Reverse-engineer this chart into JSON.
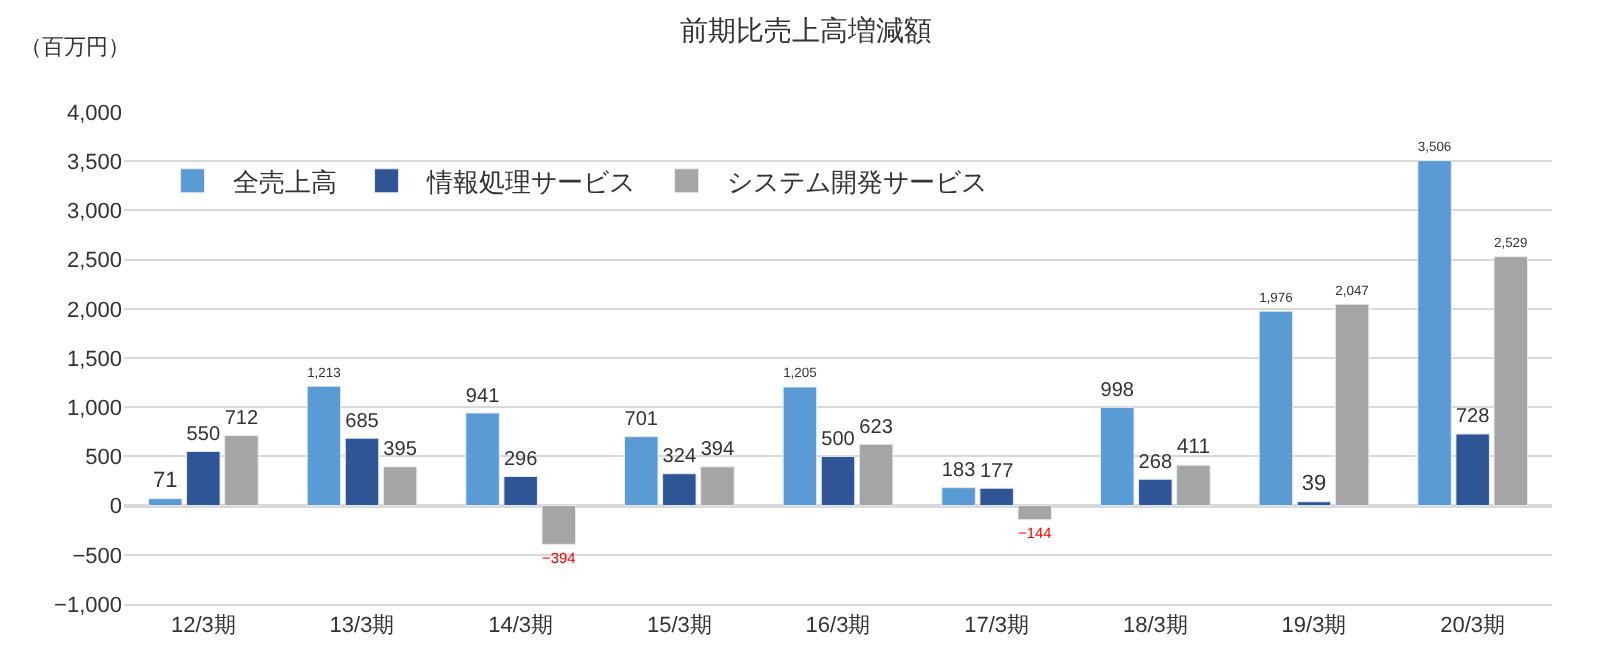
{
  "chart_data": {
    "type": "bar",
    "title": "前期比売上高増減額",
    "ylabel": "（百万円）",
    "categories": [
      "12/3期",
      "13/3期",
      "14/3期",
      "15/3期",
      "16/3期",
      "17/3期",
      "18/3期",
      "19/3期",
      "20/3期"
    ],
    "series": [
      {
        "name": "全売上高",
        "color": "#5b9bd5",
        "values": [
          71,
          1213,
          941,
          701,
          1205,
          183,
          998,
          1976,
          3506
        ],
        "value_labels": [
          "71",
          "1,213",
          "941",
          "701",
          "1,205",
          "183",
          "998",
          "1,976",
          "3,506"
        ]
      },
      {
        "name": "情報処理サービス",
        "color": "#2f5597",
        "values": [
          550,
          685,
          296,
          324,
          500,
          177,
          268,
          39,
          728
        ],
        "value_labels": [
          "550",
          "685",
          "296",
          "324",
          "500",
          "177",
          "268",
          "39",
          "728"
        ]
      },
      {
        "name": "システム開発サービス",
        "color": "#a5a5a5",
        "values": [
          712,
          395,
          -394,
          394,
          623,
          -144,
          411,
          2047,
          2529
        ],
        "value_labels": [
          "712",
          "395",
          "−394",
          "394",
          "623",
          "−144",
          "411",
          "2,047",
          "2,529"
        ]
      }
    ],
    "ylim": [
      -1000,
      4000
    ],
    "yticks": [
      {
        "value": -1000,
        "label": "−1,000"
      },
      {
        "value": -500,
        "label": "−500"
      },
      0,
      500,
      {
        "value": 1000,
        "label": "1,000"
      },
      {
        "value": 1500,
        "label": "1,500"
      },
      {
        "value": 2000,
        "label": "2,000"
      },
      {
        "value": 2500,
        "label": "2,500"
      },
      {
        "value": 3000,
        "label": "3,000"
      },
      {
        "value": 3500,
        "label": "3,500"
      },
      {
        "value": 4000,
        "label": "4,000"
      }
    ],
    "grid": "y",
    "legend": "top left"
  }
}
